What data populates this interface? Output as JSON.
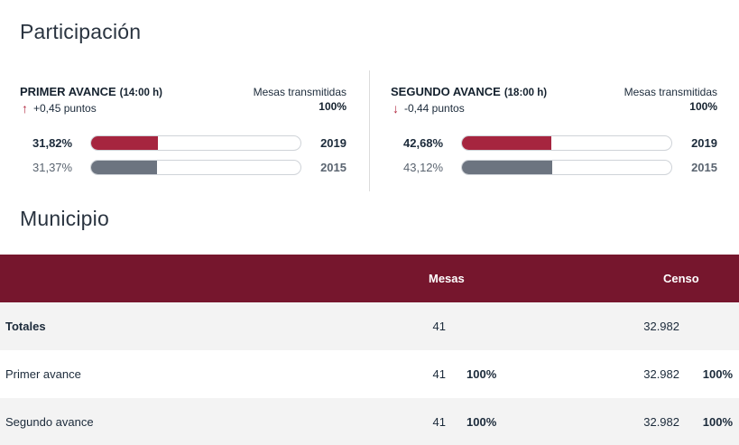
{
  "participacion": {
    "title": "Participación",
    "panels": [
      {
        "title": "PRIMER AVANCE",
        "time": "(14:00 h)",
        "delta_text": "+0,45 puntos",
        "delta_dir": "up",
        "mesas_label": "Mesas transmitidas",
        "mesas_value": "100%",
        "rows": [
          {
            "pct": "31,82%",
            "fill": 0.3182,
            "year": "2019",
            "color": "#a6253f"
          },
          {
            "pct": "31,37%",
            "fill": 0.3137,
            "year": "2015",
            "color": "#6c7480"
          }
        ]
      },
      {
        "title": "SEGUNDO AVANCE",
        "time": "(18:00 h)",
        "delta_text": "-0,44 puntos",
        "delta_dir": "down",
        "mesas_label": "Mesas transmitidas",
        "mesas_value": "100%",
        "rows": [
          {
            "pct": "42,68%",
            "fill": 0.4268,
            "year": "2019",
            "color": "#a6253f"
          },
          {
            "pct": "43,12%",
            "fill": 0.4312,
            "year": "2015",
            "color": "#6c7480"
          }
        ]
      }
    ]
  },
  "municipio": {
    "title": "Municipio",
    "header_color": "#76162d",
    "columns": {
      "mesas": "Mesas",
      "censo": "Censo"
    },
    "rows": [
      {
        "label": "Totales",
        "mesas": "41",
        "mesas_pct": "",
        "censo": "32.982",
        "censo_pct": ""
      },
      {
        "label": "Primer avance",
        "mesas": "41",
        "mesas_pct": "100%",
        "censo": "32.982",
        "censo_pct": "100%"
      },
      {
        "label": "Segundo avance",
        "mesas": "41",
        "mesas_pct": "100%",
        "censo": "32.982",
        "censo_pct": "100%"
      }
    ]
  }
}
